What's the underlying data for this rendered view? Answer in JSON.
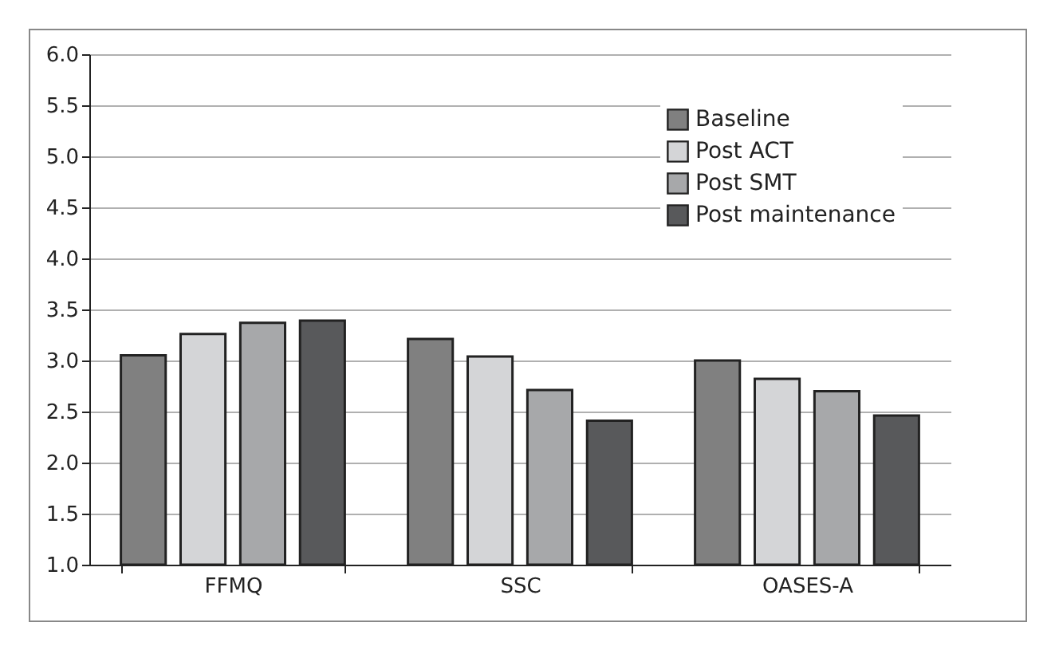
{
  "chart_data": {
    "type": "bar",
    "categories": [
      "FFMQ",
      "SSC",
      "OASES-A"
    ],
    "series": [
      {
        "name": "Baseline",
        "color": "#808080",
        "values": [
          3.05,
          3.21,
          3.0
        ]
      },
      {
        "name": "Post ACT",
        "color": "#d4d5d7",
        "values": [
          3.26,
          3.04,
          2.82
        ]
      },
      {
        "name": "Post SMT",
        "color": "#a7a8aa",
        "values": [
          3.37,
          2.71,
          2.7
        ]
      },
      {
        "name": "Post maintenance",
        "color": "#58595b",
        "values": [
          3.39,
          2.41,
          2.46
        ]
      }
    ],
    "ylim": [
      1.0,
      6.0
    ],
    "yticks": [
      {
        "value": 1,
        "label": "1.0"
      },
      {
        "value": 1.5,
        "label": "1.5"
      },
      {
        "value": 2,
        "label": "2.0"
      },
      {
        "value": 2.5,
        "label": "2.5"
      },
      {
        "value": 3,
        "label": "3.0"
      },
      {
        "value": 3.5,
        "label": "3.5"
      },
      {
        "value": 4,
        "label": "4.0"
      },
      {
        "value": 4.5,
        "label": "4.5"
      },
      {
        "value": 5,
        "label": "5.0"
      },
      {
        "value": 5.5,
        "label": "5.5"
      },
      {
        "value": 6,
        "label": "6.0"
      }
    ],
    "grid": "y",
    "legend": "top right"
  }
}
